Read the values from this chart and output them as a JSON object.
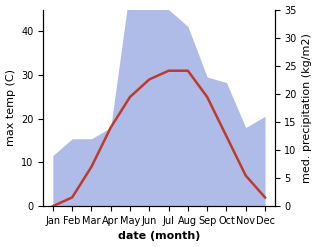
{
  "months": [
    "Jan",
    "Feb",
    "Mar",
    "Apr",
    "May",
    "Jun",
    "Jul",
    "Aug",
    "Sep",
    "Oct",
    "Nov",
    "Dec"
  ],
  "x": [
    1,
    2,
    3,
    4,
    5,
    6,
    7,
    8,
    9,
    10,
    11,
    12
  ],
  "temperature": [
    0,
    2,
    9,
    18,
    25,
    29,
    31,
    31,
    25,
    16,
    7,
    2
  ],
  "precipitation": [
    9,
    12,
    12,
    14,
    39,
    40,
    35,
    32,
    23,
    22,
    14,
    16
  ],
  "temp_color": "#c0392b",
  "precip_fill_color": "#b0bce8",
  "left_ylim": [
    0,
    45
  ],
  "right_ylim": [
    0,
    35
  ],
  "left_yticks": [
    0,
    10,
    20,
    30,
    40
  ],
  "right_yticks": [
    0,
    5,
    10,
    15,
    20,
    25,
    30,
    35
  ],
  "xlabel": "date (month)",
  "ylabel_left": "max temp (C)",
  "ylabel_right": "med. precipitation (kg/m2)",
  "background_color": "#ffffff",
  "xlabel_fontsize": 8,
  "ylabel_fontsize": 8,
  "tick_fontsize": 7
}
